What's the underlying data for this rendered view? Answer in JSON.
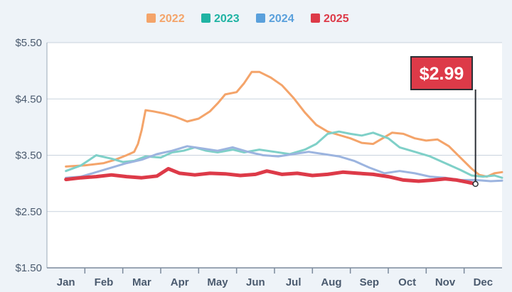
{
  "chart_data": {
    "type": "line",
    "title": "",
    "xlabel": "",
    "ylabel": "",
    "categories": [
      "Jan",
      "Feb",
      "Mar",
      "Apr",
      "May",
      "Jun",
      "Jul",
      "Aug",
      "Sep",
      "Oct",
      "Nov",
      "Dec"
    ],
    "ylim": [
      1.5,
      5.5
    ],
    "yticks": [
      "$5.50",
      "$4.50",
      "$3.50",
      "$2.50",
      "$1.50"
    ],
    "grid": true,
    "legend_position": "top-center",
    "series": [
      {
        "name": "2022",
        "color": "#f4a46a",
        "values": [
          [
            0.0,
            3.3
          ],
          [
            0.5,
            3.32
          ],
          [
            1.0,
            3.36
          ],
          [
            1.3,
            3.42
          ],
          [
            1.6,
            3.5
          ],
          [
            1.8,
            3.56
          ],
          [
            1.9,
            3.7
          ],
          [
            2.0,
            3.95
          ],
          [
            2.1,
            4.3
          ],
          [
            2.3,
            4.28
          ],
          [
            2.6,
            4.24
          ],
          [
            2.9,
            4.18
          ],
          [
            3.2,
            4.1
          ],
          [
            3.5,
            4.15
          ],
          [
            3.8,
            4.28
          ],
          [
            4.0,
            4.42
          ],
          [
            4.2,
            4.58
          ],
          [
            4.5,
            4.62
          ],
          [
            4.7,
            4.78
          ],
          [
            4.9,
            4.98
          ],
          [
            5.1,
            4.98
          ],
          [
            5.4,
            4.88
          ],
          [
            5.7,
            4.74
          ],
          [
            6.0,
            4.52
          ],
          [
            6.3,
            4.26
          ],
          [
            6.6,
            4.04
          ],
          [
            6.9,
            3.92
          ],
          [
            7.2,
            3.86
          ],
          [
            7.5,
            3.8
          ],
          [
            7.8,
            3.72
          ],
          [
            8.1,
            3.7
          ],
          [
            8.3,
            3.78
          ],
          [
            8.6,
            3.9
          ],
          [
            8.9,
            3.88
          ],
          [
            9.2,
            3.8
          ],
          [
            9.5,
            3.76
          ],
          [
            9.8,
            3.78
          ],
          [
            10.1,
            3.66
          ],
          [
            10.4,
            3.46
          ],
          [
            10.7,
            3.26
          ],
          [
            10.9,
            3.15
          ],
          [
            11.1,
            3.12
          ],
          [
            11.3,
            3.18
          ],
          [
            11.5,
            3.2
          ]
        ]
      },
      {
        "name": "2023",
        "color": "#7fd0c8",
        "values": [
          [
            0.0,
            3.22
          ],
          [
            0.4,
            3.32
          ],
          [
            0.8,
            3.5
          ],
          [
            1.2,
            3.44
          ],
          [
            1.5,
            3.38
          ],
          [
            1.8,
            3.4
          ],
          [
            2.1,
            3.48
          ],
          [
            2.5,
            3.46
          ],
          [
            2.8,
            3.55
          ],
          [
            3.1,
            3.58
          ],
          [
            3.4,
            3.64
          ],
          [
            3.7,
            3.58
          ],
          [
            4.0,
            3.55
          ],
          [
            4.4,
            3.6
          ],
          [
            4.7,
            3.55
          ],
          [
            5.1,
            3.6
          ],
          [
            5.5,
            3.56
          ],
          [
            5.9,
            3.52
          ],
          [
            6.3,
            3.6
          ],
          [
            6.6,
            3.7
          ],
          [
            6.9,
            3.88
          ],
          [
            7.2,
            3.92
          ],
          [
            7.5,
            3.88
          ],
          [
            7.8,
            3.85
          ],
          [
            8.1,
            3.9
          ],
          [
            8.5,
            3.8
          ],
          [
            8.8,
            3.64
          ],
          [
            9.2,
            3.56
          ],
          [
            9.6,
            3.48
          ],
          [
            10.0,
            3.36
          ],
          [
            10.4,
            3.24
          ],
          [
            10.7,
            3.14
          ],
          [
            11.0,
            3.12
          ],
          [
            11.3,
            3.14
          ],
          [
            11.5,
            3.1
          ]
        ]
      },
      {
        "name": "2024",
        "color": "#9cb4df",
        "values": [
          [
            0.0,
            3.1
          ],
          [
            0.4,
            3.12
          ],
          [
            0.8,
            3.2
          ],
          [
            1.2,
            3.28
          ],
          [
            1.6,
            3.36
          ],
          [
            2.0,
            3.42
          ],
          [
            2.4,
            3.52
          ],
          [
            2.8,
            3.58
          ],
          [
            3.2,
            3.66
          ],
          [
            3.6,
            3.62
          ],
          [
            4.0,
            3.58
          ],
          [
            4.4,
            3.64
          ],
          [
            4.8,
            3.56
          ],
          [
            5.2,
            3.5
          ],
          [
            5.6,
            3.48
          ],
          [
            6.0,
            3.52
          ],
          [
            6.4,
            3.56
          ],
          [
            6.8,
            3.52
          ],
          [
            7.2,
            3.48
          ],
          [
            7.6,
            3.4
          ],
          [
            8.0,
            3.28
          ],
          [
            8.4,
            3.18
          ],
          [
            8.8,
            3.22
          ],
          [
            9.2,
            3.18
          ],
          [
            9.6,
            3.12
          ],
          [
            10.0,
            3.1
          ],
          [
            10.4,
            3.06
          ],
          [
            10.8,
            3.06
          ],
          [
            11.2,
            3.04
          ],
          [
            11.5,
            3.05
          ]
        ]
      },
      {
        "name": "2025",
        "color": "#dd3a48",
        "values": [
          [
            0.0,
            3.07
          ],
          [
            0.4,
            3.1
          ],
          [
            0.8,
            3.12
          ],
          [
            1.2,
            3.15
          ],
          [
            1.6,
            3.12
          ],
          [
            2.0,
            3.1
          ],
          [
            2.4,
            3.13
          ],
          [
            2.7,
            3.26
          ],
          [
            3.0,
            3.18
          ],
          [
            3.4,
            3.15
          ],
          [
            3.8,
            3.18
          ],
          [
            4.2,
            3.17
          ],
          [
            4.6,
            3.14
          ],
          [
            5.0,
            3.16
          ],
          [
            5.3,
            3.22
          ],
          [
            5.7,
            3.16
          ],
          [
            6.1,
            3.18
          ],
          [
            6.5,
            3.14
          ],
          [
            6.9,
            3.16
          ],
          [
            7.3,
            3.2
          ],
          [
            7.7,
            3.18
          ],
          [
            8.1,
            3.16
          ],
          [
            8.5,
            3.12
          ],
          [
            8.9,
            3.06
          ],
          [
            9.3,
            3.04
          ],
          [
            9.7,
            3.06
          ],
          [
            10.0,
            3.08
          ],
          [
            10.3,
            3.06
          ],
          [
            10.6,
            3.02
          ],
          [
            10.8,
            2.99
          ]
        ]
      }
    ],
    "callout": {
      "label": "$2.99",
      "x": 10.8,
      "y": 2.99,
      "color": "#dd3a48"
    }
  }
}
